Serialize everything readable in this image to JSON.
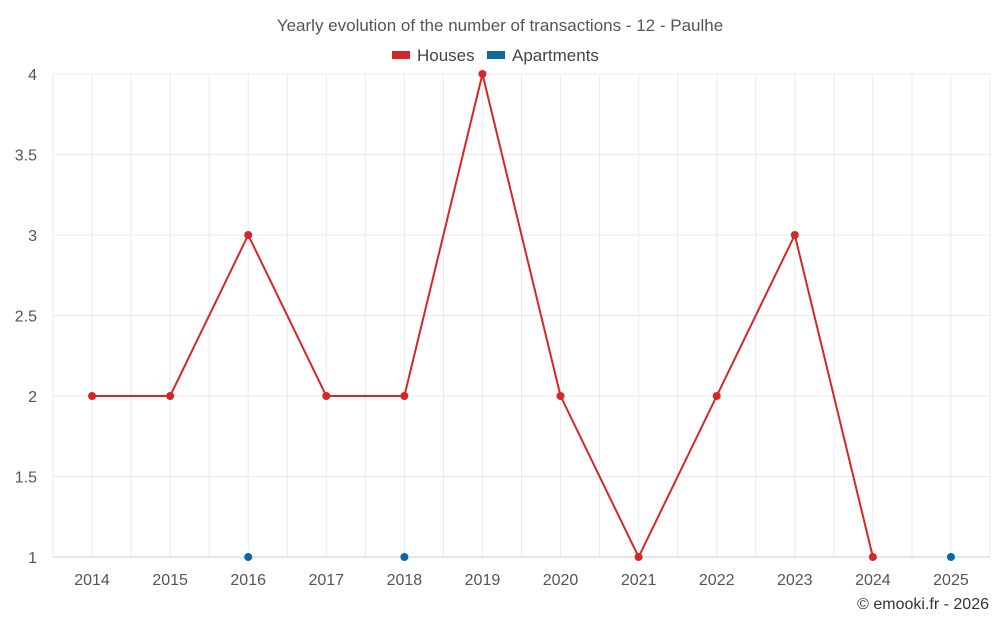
{
  "chart_data": {
    "type": "line",
    "title": "Yearly evolution of the number of transactions - 12 - Paulhe",
    "categories": [
      "2014",
      "2015",
      "2016",
      "2017",
      "2018",
      "2019",
      "2020",
      "2021",
      "2022",
      "2023",
      "2024",
      "2025"
    ],
    "series": [
      {
        "name": "Houses",
        "color": "#d62728",
        "values": [
          2,
          2,
          3,
          2,
          2,
          4,
          2,
          1,
          2,
          3,
          1,
          null
        ]
      },
      {
        "name": "Apartments",
        "color": "#0b6a9e",
        "values": [
          null,
          null,
          1,
          null,
          1,
          null,
          null,
          null,
          null,
          null,
          null,
          1
        ]
      }
    ],
    "yticks": [
      "1",
      "1.5",
      "2",
      "2.5",
      "3",
      "3.5",
      "4"
    ],
    "ylim": [
      1,
      4
    ],
    "grid": true,
    "legend_position": "top-center",
    "credit": "© emooki.fr - 2026"
  }
}
